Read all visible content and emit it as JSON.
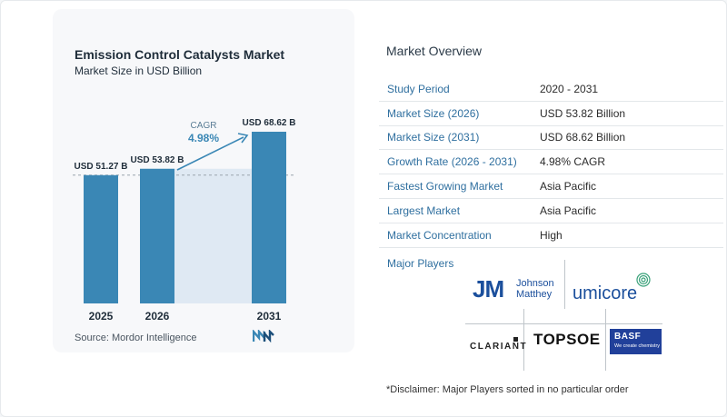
{
  "chart": {
    "title": "Emission Control Catalysts Market",
    "subtitle": "Market Size in USD Billion",
    "source": "Source:  Mordor Intelligence",
    "cagr_label": "CAGR",
    "cagr_value": "4.98%"
  },
  "chart_data": {
    "type": "bar",
    "title": "Emission Control Catalysts Market",
    "subtitle": "Market Size in USD Billion",
    "categories": [
      "2025",
      "2026",
      "2031"
    ],
    "values": [
      51.27,
      53.82,
      68.62
    ],
    "data_labels": [
      "USD 51.27 B",
      "USD 53.82 B",
      "USD 68.62 B"
    ],
    "annotation": "CAGR 4.98%",
    "bar_color": "#3a87b5",
    "area_color": "#dfe9f3"
  },
  "overview": {
    "title": "Market Overview",
    "rows": [
      {
        "key": "Study Period",
        "value": "2020 - 2031"
      },
      {
        "key": "Market Size (2026)",
        "value": "USD 53.82 Billion"
      },
      {
        "key": "Market Size (2031)",
        "value": "USD 68.62 Billion"
      },
      {
        "key": "Growth Rate (2026 - 2031)",
        "value": "4.98% CAGR"
      },
      {
        "key": "Fastest Growing Market",
        "value": "Asia Pacific"
      },
      {
        "key": "Largest Market",
        "value": "Asia Pacific"
      },
      {
        "key": "Market Concentration",
        "value": "High"
      }
    ],
    "major_players_label": "Major Players",
    "disclaimer": "*Disclaimer: Major Players sorted in no particular order"
  },
  "players": {
    "jm_mark": "JM",
    "jm_line1": "Johnson",
    "jm_line2": "Matthey",
    "umicore": "umicore",
    "clariant": "CLARIANT",
    "topsoe": "TOPSOE",
    "basf": "BASF",
    "basf_tagline": "We create chemistry"
  },
  "colors": {
    "key_text": "#2f6f9f",
    "bar": "#3a87b5",
    "accent": "#3a87b5"
  }
}
